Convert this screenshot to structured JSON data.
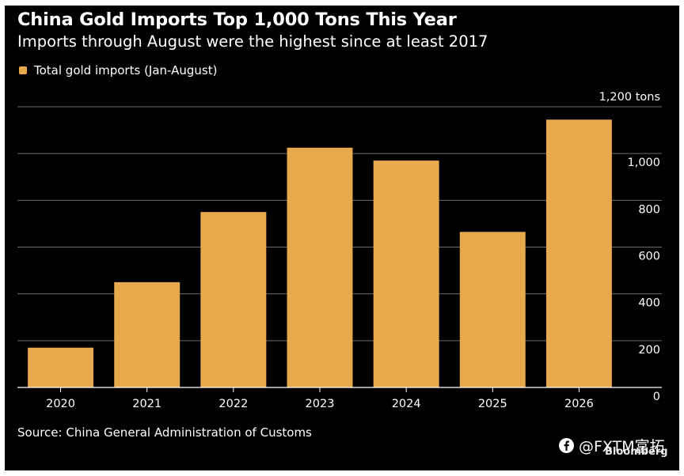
{
  "title": "China Gold Imports Top 1,000 Tons This Year",
  "subtitle": "Imports through August were the highest since at least 2017",
  "source": "Source: China General Administration of Customs",
  "brand": "Bloomberg",
  "watermark": "@FXTM富拓",
  "colors": {
    "background": "#000000",
    "bar": "#e8a84c",
    "grid": "#6b6b6b",
    "text": "#ffffff"
  },
  "chart_data": {
    "type": "bar",
    "categories": [
      "2020",
      "2021",
      "2022",
      "2023",
      "2024",
      "2025",
      "2026"
    ],
    "series": [
      {
        "name": "Total gold imports (Jan-August)",
        "values": [
          170,
          450,
          750,
          1025,
          970,
          665,
          1145
        ]
      }
    ],
    "ylim": [
      0,
      1200
    ],
    "yticks": [
      0,
      200,
      400,
      600,
      800,
      1000,
      1200
    ],
    "ytick_labels": [
      "0",
      "200",
      "400",
      "600",
      "800",
      "1,000",
      "1,200 tons"
    ],
    "grid": true,
    "legend": "top-left",
    "xlabel": "",
    "ylabel": ""
  }
}
